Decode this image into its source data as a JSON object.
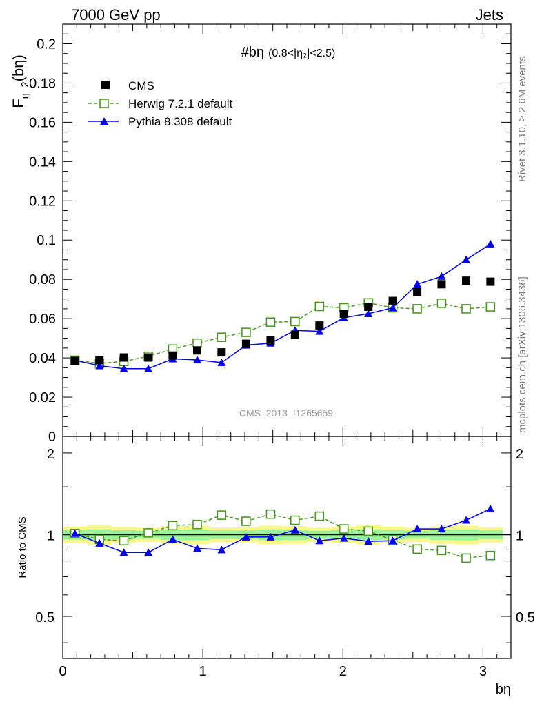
{
  "header": {
    "left": "7000 GeV pp",
    "right": "Jets"
  },
  "side_labels": {
    "rivet": "Rivet 3.1.10, ≥ 2.6M events",
    "mcplots": "mcplots.cern.ch [arXiv:1306.3436]"
  },
  "analysis_id": "CMS_2013_I1265659",
  "chart_data": [
    {
      "type": "scatter",
      "title": "#bη",
      "subtitle": "(0.8<|η₂|<2.5)",
      "xlabel": "bη",
      "ylabel": "Fη_2(bη)",
      "ylabel_main": "F",
      "ylabel_sub": "η_2",
      "ylabel_tail": "(bη)",
      "xlim": [
        0,
        3.2
      ],
      "ylim": [
        0,
        0.21
      ],
      "y_ticks": [
        "0.2",
        "0.18",
        "0.16",
        "0.14",
        "0.12",
        "0.1",
        "0.08",
        "0.06",
        "0.04",
        "0.02",
        "0"
      ],
      "legend_position": "top-left",
      "x": [
        0.087,
        0.262,
        0.436,
        0.611,
        0.785,
        0.96,
        1.134,
        1.309,
        1.484,
        1.658,
        1.833,
        2.007,
        2.182,
        2.356,
        2.531,
        2.705,
        2.88,
        3.054
      ],
      "series": [
        {
          "name": "CMS",
          "color": "#000000",
          "marker": "filled-square",
          "line": "none",
          "values": [
            0.0385,
            0.0388,
            0.0402,
            0.0402,
            0.0412,
            0.0438,
            0.0428,
            0.0472,
            0.0488,
            0.0518,
            0.0565,
            0.0625,
            0.066,
            0.069,
            0.0735,
            0.0775,
            0.0793,
            0.0788
          ]
        },
        {
          "name": "Herwig 7.2.1 default",
          "color": "#4a9a1f",
          "marker": "open-square",
          "line": "dashed",
          "values": [
            0.0388,
            0.0372,
            0.0382,
            0.0408,
            0.0445,
            0.0475,
            0.0505,
            0.053,
            0.0582,
            0.0585,
            0.0662,
            0.0655,
            0.068,
            0.0655,
            0.065,
            0.0678,
            0.065,
            0.066
          ]
        },
        {
          "name": "Pythia 8.308 default",
          "color": "#0000ee",
          "marker": "filled-triangle",
          "line": "solid",
          "values": [
            0.0388,
            0.036,
            0.0345,
            0.0345,
            0.0395,
            0.039,
            0.0376,
            0.0465,
            0.0475,
            0.054,
            0.0535,
            0.0605,
            0.0625,
            0.0655,
            0.0775,
            0.0815,
            0.09,
            0.098
          ]
        }
      ]
    },
    {
      "type": "scatter",
      "ylabel": "Ratio to CMS",
      "xlabel": "bη",
      "xlim": [
        0,
        3.2
      ],
      "ylim": [
        0.35,
        2.3
      ],
      "y_ticks": [
        "2",
        "1",
        "0.5"
      ],
      "x_ticks": [
        "0",
        "1",
        "2",
        "3"
      ],
      "reference_line": 1,
      "uncertainty_band_inner": 0.04,
      "uncertainty_band_outer": 0.07,
      "x": [
        0.087,
        0.262,
        0.436,
        0.611,
        0.785,
        0.96,
        1.134,
        1.309,
        1.484,
        1.658,
        1.833,
        2.007,
        2.182,
        2.356,
        2.531,
        2.705,
        2.88,
        3.054
      ],
      "series": [
        {
          "name": "Herwig 7.2.1 default",
          "color": "#4a9a1f",
          "marker": "open-square",
          "line": "dashed",
          "values": [
            1.01,
            0.96,
            0.95,
            1.015,
            1.08,
            1.09,
            1.18,
            1.12,
            1.19,
            1.13,
            1.17,
            1.05,
            1.03,
            0.955,
            0.885,
            0.875,
            0.82,
            0.838
          ]
        },
        {
          "name": "Pythia 8.308 default",
          "color": "#0000ee",
          "marker": "filled-triangle",
          "line": "solid",
          "values": [
            1.01,
            0.93,
            0.86,
            0.86,
            0.96,
            0.89,
            0.88,
            0.98,
            0.98,
            1.04,
            0.95,
            0.97,
            0.945,
            0.95,
            1.05,
            1.05,
            1.13,
            1.245
          ]
        }
      ]
    }
  ]
}
